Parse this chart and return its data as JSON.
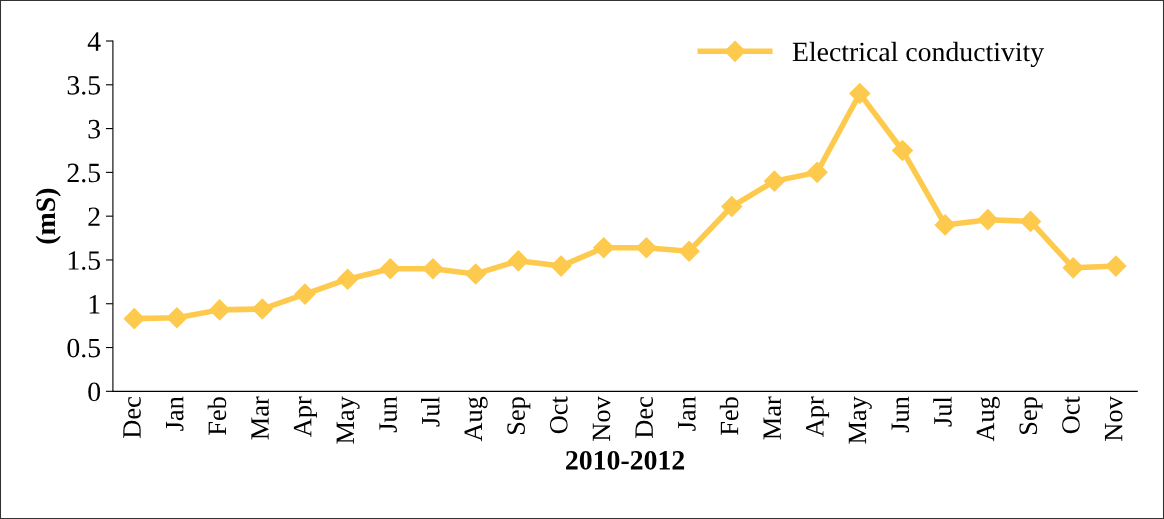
{
  "chart_data": {
    "type": "line",
    "xlabel": "2010-2012",
    "ylabel": "(mS)",
    "categories": [
      "Dec",
      "Jan",
      "Feb",
      "Mar",
      "Apr",
      "May",
      "Jun",
      "Jul",
      "Aug",
      "Sep",
      "Oct",
      "Nov",
      "Dec",
      "Jan",
      "Feb",
      "Mar",
      "Apr",
      "May",
      "Jun",
      "Jul",
      "Aug",
      "Sep",
      "Oct",
      "Nov"
    ],
    "series": [
      {
        "name": "Electrical conductivity",
        "color": "#fdca4e",
        "values": [
          0.83,
          0.84,
          0.93,
          0.94,
          1.11,
          1.28,
          1.4,
          1.4,
          1.34,
          1.49,
          1.43,
          1.64,
          1.64,
          1.6,
          2.11,
          2.4,
          2.5,
          3.4,
          2.75,
          1.9,
          1.96,
          1.94,
          1.41,
          1.43
        ]
      }
    ],
    "ylim": [
      0,
      4
    ],
    "yticks": [
      0,
      0.5,
      1,
      1.5,
      2,
      2.5,
      3,
      3.5,
      4
    ],
    "grid": false,
    "legend": "top right",
    "marker": "diamond",
    "line_style": "solid"
  }
}
